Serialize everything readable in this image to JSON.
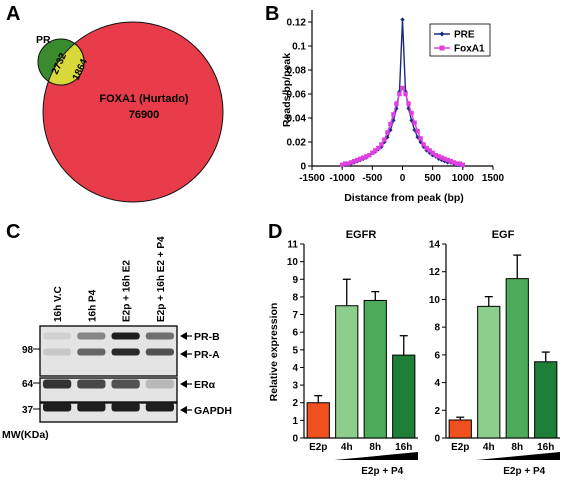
{
  "panels": {
    "a": {
      "letter": "A",
      "set_small_label": "PR",
      "set_large_label": "FOXA1 (Hurtado)",
      "pr_only": "2732",
      "overlap": "1864",
      "foxa1_only": "76900",
      "colors": {
        "pr": "#3a8a2e",
        "overlap": "#d8d83a",
        "foxa1": "#e83c4a"
      }
    },
    "b": {
      "letter": "B"
    },
    "c": {
      "letter": "C",
      "lanes": [
        "16h V.C",
        "16h P4",
        "E2p + 16h E2",
        "E2p + 16h E2 + P4"
      ],
      "markers": [
        "98",
        "64",
        "37"
      ],
      "mw_label": "MW(KDa)",
      "bands": [
        "PR-B",
        "PR-A",
        "ERα",
        "GAPDH"
      ],
      "intensity": {
        "PR-B": [
          0.08,
          0.45,
          0.95,
          0.55
        ],
        "PR-A": [
          0.12,
          0.6,
          0.9,
          0.7
        ],
        "ER": [
          0.85,
          0.75,
          0.7,
          0.2
        ],
        "GAPDH": [
          0.95,
          0.95,
          0.95,
          0.95
        ]
      }
    },
    "d": {
      "letter": "D",
      "ylabel": "Relative expression",
      "treatment_label": "E2p + P4"
    }
  },
  "chart_data": [
    {
      "type": "line",
      "panel": "B",
      "xlabel": "Distance from peak (bp)",
      "ylabel": "Reads/bp/peak",
      "xlim": [
        -1500,
        1500
      ],
      "ylim": [
        0,
        0.13
      ],
      "xticks": [
        "-1500",
        "-1000",
        "-500",
        "0",
        "500",
        "1000",
        "1500"
      ],
      "yticks": [
        "0",
        "0.02",
        "0.04",
        "0.06",
        "0.08",
        "0.1",
        "0.12"
      ],
      "legend_position": "top-right",
      "series": [
        {
          "name": "PRE",
          "color": "#1a2a80",
          "x": [
            -1000,
            -950,
            -900,
            -850,
            -800,
            -750,
            -700,
            -650,
            -600,
            -550,
            -500,
            -450,
            -400,
            -350,
            -300,
            -250,
            -200,
            -150,
            -100,
            -50,
            0,
            50,
            100,
            150,
            200,
            250,
            300,
            350,
            400,
            450,
            500,
            550,
            600,
            650,
            700,
            750,
            800,
            850,
            900,
            950,
            1000
          ],
          "y": [
            0.0,
            0.001,
            0.002,
            0.002,
            0.003,
            0.004,
            0.005,
            0.006,
            0.007,
            0.009,
            0.011,
            0.012,
            0.014,
            0.016,
            0.02,
            0.024,
            0.03,
            0.038,
            0.048,
            0.062,
            0.122,
            0.062,
            0.048,
            0.038,
            0.03,
            0.024,
            0.02,
            0.016,
            0.013,
            0.011,
            0.009,
            0.008,
            0.006,
            0.005,
            0.004,
            0.003,
            0.003,
            0.002,
            0.001,
            0.001,
            0.0
          ]
        },
        {
          "name": "FoxA1",
          "color": "#e040e0",
          "x": [
            -1000,
            -950,
            -900,
            -850,
            -800,
            -750,
            -700,
            -650,
            -600,
            -550,
            -500,
            -450,
            -400,
            -350,
            -300,
            -250,
            -200,
            -150,
            -100,
            -50,
            0,
            50,
            100,
            150,
            200,
            250,
            300,
            350,
            400,
            450,
            500,
            550,
            600,
            650,
            700,
            750,
            800,
            850,
            900,
            950,
            1000
          ],
          "y": [
            0.001,
            0.002,
            0.002,
            0.003,
            0.004,
            0.005,
            0.006,
            0.007,
            0.008,
            0.009,
            0.011,
            0.013,
            0.015,
            0.018,
            0.022,
            0.028,
            0.035,
            0.043,
            0.052,
            0.06,
            0.065,
            0.06,
            0.052,
            0.044,
            0.036,
            0.029,
            0.023,
            0.018,
            0.015,
            0.013,
            0.011,
            0.009,
            0.008,
            0.007,
            0.006,
            0.005,
            0.004,
            0.003,
            0.002,
            0.002,
            0.001
          ]
        }
      ]
    },
    {
      "type": "bar",
      "panel": "D",
      "title": "EGFR",
      "ylabel": "Relative expression",
      "categories": [
        "E2p",
        "4h",
        "8h",
        "16h"
      ],
      "values": [
        2.0,
        7.5,
        7.8,
        4.7
      ],
      "errors": [
        0.4,
        1.5,
        0.5,
        1.1
      ],
      "colors": [
        "#f0501e",
        "#8ccf8c",
        "#4caa5a",
        "#1e8038"
      ],
      "ylim": [
        0,
        11
      ],
      "yticks": [
        "0",
        "1",
        "2",
        "3",
        "4",
        "5",
        "6",
        "7",
        "8",
        "9",
        "10",
        "11"
      ],
      "group_label": "E2p + P4"
    },
    {
      "type": "bar",
      "panel": "D",
      "title": "EGF",
      "categories": [
        "E2p",
        "4h",
        "8h",
        "16h"
      ],
      "values": [
        1.3,
        9.5,
        11.5,
        5.5
      ],
      "errors": [
        0.2,
        0.7,
        1.7,
        0.7
      ],
      "colors": [
        "#f0501e",
        "#8ccf8c",
        "#4caa5a",
        "#1e8038"
      ],
      "ylim": [
        0,
        14
      ],
      "yticks": [
        "0",
        "2",
        "4",
        "6",
        "8",
        "10",
        "12",
        "14"
      ],
      "group_label": "E2p + P4"
    }
  ]
}
